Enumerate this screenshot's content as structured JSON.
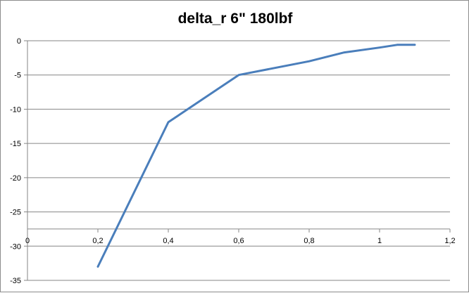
{
  "chart_data": {
    "type": "line",
    "title": "delta_r 6\" 180lbf",
    "xlabel": "",
    "ylabel": "",
    "xlim": [
      0,
      1.2
    ],
    "ylim": [
      -35,
      0
    ],
    "xticks": [
      0,
      0.2,
      0.4,
      0.6,
      0.8,
      1,
      1.2
    ],
    "xtick_labels": [
      "0",
      "0,2",
      "0,4",
      "0,6",
      "0,8",
      "1",
      "1,2"
    ],
    "yticks": [
      0,
      -5,
      -10,
      -15,
      -20,
      -25,
      -30,
      -35
    ],
    "ytick_labels": [
      "0",
      "-5",
      "-10",
      "-15",
      "-20",
      "-25",
      "-30",
      "-35"
    ],
    "x_axis_crosses_y_at": -27.5,
    "grid": "horizontal",
    "legend": "none",
    "series": [
      {
        "color": "#4a7ebb",
        "x": [
          0.2,
          0.4,
          0.6,
          0.8,
          0.9,
          1.0,
          1.05,
          1.1
        ],
        "y": [
          -33.0,
          -11.9,
          -5.0,
          -3.0,
          -1.7,
          -1.0,
          -0.6,
          -0.6
        ]
      }
    ]
  }
}
